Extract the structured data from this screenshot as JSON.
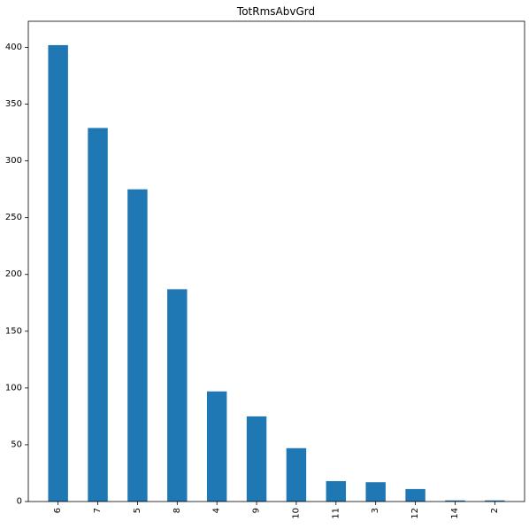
{
  "chart_data": {
    "type": "bar",
    "title": "TotRmsAbvGrd",
    "xlabel": "",
    "ylabel": "",
    "categories": [
      "6",
      "7",
      "5",
      "8",
      "4",
      "9",
      "10",
      "11",
      "3",
      "12",
      "14",
      "2"
    ],
    "values": [
      402,
      329,
      275,
      187,
      97,
      75,
      47,
      18,
      17,
      11,
      1,
      1
    ],
    "ylim": [
      0,
      423
    ],
    "yticks": [
      0,
      50,
      100,
      150,
      200,
      250,
      300,
      350,
      400
    ],
    "grid": false,
    "legend": "none",
    "bar_color": "#1f77b4",
    "xtick_rotation": 90
  }
}
